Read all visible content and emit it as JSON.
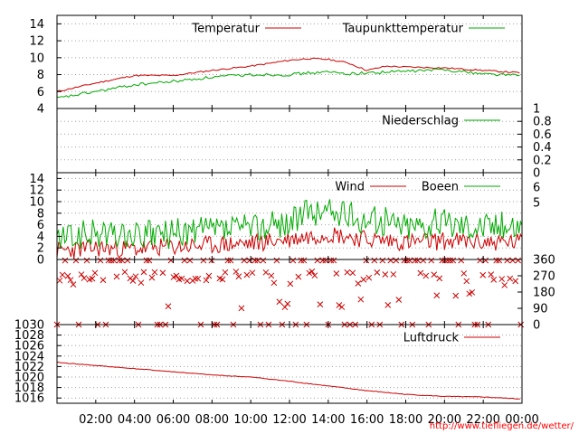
{
  "chart_data": [
    {
      "type": "line",
      "panel": "temperature",
      "ylim": [
        4,
        15
      ],
      "yticks": [
        "4",
        "6",
        "8",
        "10",
        "12",
        "14"
      ],
      "grid": true,
      "legend_placement": "top-right",
      "x": [
        0,
        2,
        4,
        6,
        8,
        10,
        12,
        13,
        14,
        15,
        16,
        17,
        18,
        20,
        22,
        24
      ],
      "series": [
        {
          "name": "Temperatur",
          "color": "#cc0000",
          "values": [
            6.0,
            7.0,
            7.9,
            7.9,
            8.5,
            9.0,
            9.7,
            9.9,
            9.8,
            9.4,
            8.5,
            9.0,
            8.9,
            8.8,
            8.5,
            8.2
          ]
        },
        {
          "name": "Taupunkttemperatur",
          "color": "#00aa00",
          "values": [
            5.2,
            6.0,
            6.8,
            7.2,
            7.7,
            8.0,
            8.0,
            8.2,
            8.3,
            8.1,
            8.2,
            8.3,
            8.4,
            8.6,
            8.1,
            7.9
          ]
        }
      ]
    },
    {
      "type": "line",
      "panel": "precipitation",
      "ylim": [
        0,
        1
      ],
      "yticks": [
        "0",
        "0.2",
        "0.4",
        "0.6",
        "0.8",
        "1"
      ],
      "grid": true,
      "legend_placement": "top-right",
      "series": [
        {
          "name": "Niederschlag",
          "color": "#00aa00",
          "values": [
            0,
            0
          ]
        }
      ]
    },
    {
      "type": "line",
      "panel": "wind",
      "ylim": [
        0,
        15
      ],
      "yticks": [
        "0",
        "2",
        "4",
        "6",
        "8",
        "10",
        "12",
        "14"
      ],
      "y2ticks": [
        "5",
        "6"
      ],
      "grid": true,
      "legend_placement": "top-right",
      "x": [
        0,
        2,
        4,
        6,
        8,
        10,
        12,
        13,
        14,
        15,
        16,
        18,
        20,
        22,
        24
      ],
      "series": [
        {
          "name": "Wind",
          "color": "#cc0000",
          "values": [
            1.5,
            2.0,
            1.8,
            2.2,
            2.5,
            2.8,
            3.5,
            4.0,
            4.5,
            4.0,
            3.5,
            3.0,
            3.2,
            3.0,
            3.0
          ]
        },
        {
          "name": "Boeen",
          "color": "#00aa00",
          "values": [
            3.5,
            4.5,
            4.0,
            4.5,
            5.0,
            5.5,
            6.5,
            8.0,
            8.5,
            7.5,
            7.0,
            6.0,
            6.5,
            6.0,
            6.0
          ]
        }
      ]
    },
    {
      "type": "scatter",
      "panel": "wind-direction",
      "ylim": [
        0,
        360
      ],
      "y2ticks": [
        "0",
        "90",
        "180",
        "270",
        "360"
      ],
      "color": "#cc0000",
      "marker": "x"
    },
    {
      "type": "line",
      "panel": "pressure",
      "ylim": [
        1015,
        1030
      ],
      "yticks": [
        "1016",
        "1018",
        "1020",
        "1022",
        "1024",
        "1026",
        "1028",
        "1030"
      ],
      "grid": true,
      "legend_placement": "top-right",
      "x": [
        0,
        2,
        4,
        6,
        8,
        10,
        12,
        14,
        16,
        18,
        20,
        22,
        24
      ],
      "series": [
        {
          "name": "Luftdruck",
          "color": "#cc0000",
          "values": [
            1022.8,
            1022.2,
            1021.6,
            1021.0,
            1020.4,
            1020.0,
            1019.2,
            1018.3,
            1017.4,
            1016.7,
            1016.3,
            1016.2,
            1015.8
          ]
        }
      ]
    }
  ],
  "x_axis": {
    "xlim": [
      0,
      24
    ],
    "tick_values": [
      2,
      4,
      6,
      8,
      10,
      12,
      14,
      16,
      18,
      20,
      22,
      24
    ],
    "tick_labels": [
      "02:00",
      "04:00",
      "06:00",
      "08:00",
      "10:00",
      "12:00",
      "14:00",
      "16:00",
      "18:00",
      "20:00",
      "22:00",
      "00:00"
    ]
  },
  "footer": {
    "url": "http://www.tiefliegen.de/wetter/"
  },
  "colors": {
    "red": "#cc0000",
    "green": "#00aa00",
    "grid": "#a0a0a0"
  }
}
